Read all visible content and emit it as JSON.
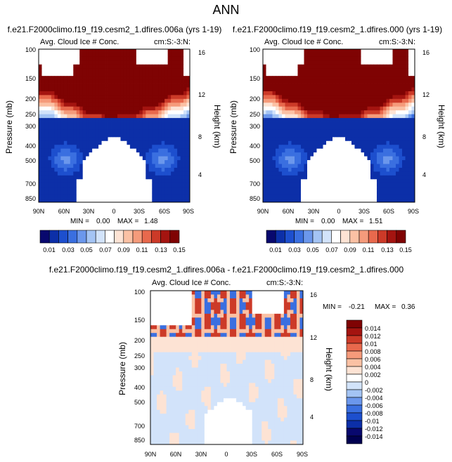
{
  "page": {
    "title": "ANN"
  },
  "chart_data": [
    {
      "type": "heatmap",
      "run_title": "f.e21.F2000climo.f19_f19.cesm2_1.dfires.006a (yrs 1-19)",
      "title": "Avg. Cloud Ice # Conc.",
      "corner_label": "cm:S:-3:N:",
      "ylabel": "Pressure (mb)",
      "ylabel_right": "Height (km)",
      "x_ticks": [
        "90N",
        "60N",
        "30N",
        "0",
        "30S",
        "60S",
        "90S"
      ],
      "y_ticks": [
        "100",
        "150",
        "200",
        "250",
        "300",
        "400",
        "500",
        "700",
        "850"
      ],
      "y_ticks_right": [
        "16",
        "12",
        "8",
        "4"
      ],
      "stats": {
        "min_label": "MIN =",
        "min": "0.00",
        "max_label": "MAX =",
        "max": "1.48"
      },
      "colorbar_labels": [
        "0.01",
        "0.03",
        "0.05",
        "0.07",
        "0.09",
        "0.11",
        "0.13",
        "0.15"
      ]
    },
    {
      "type": "heatmap",
      "run_title": "f.e21.F2000climo.f19_f19.cesm2_1.dfires.000 (yrs 1-19)",
      "title": "Avg. Cloud Ice # Conc.",
      "corner_label": "cm:S:-3:N:",
      "ylabel": "Pressure (mb)",
      "ylabel_right": "Height (km)",
      "x_ticks": [
        "90N",
        "60N",
        "30N",
        "0",
        "30S",
        "60S",
        "90S"
      ],
      "y_ticks": [
        "100",
        "150",
        "200",
        "250",
        "300",
        "400",
        "500",
        "700",
        "850"
      ],
      "y_ticks_right": [
        "16",
        "12",
        "8",
        "4"
      ],
      "stats": {
        "min_label": "MIN =",
        "min": "0.00",
        "max_label": "MAX =",
        "max": "1.51"
      },
      "colorbar_labels": [
        "0.01",
        "0.03",
        "0.05",
        "0.07",
        "0.09",
        "0.11",
        "0.13",
        "0.15"
      ]
    },
    {
      "type": "heatmap",
      "run_title": "f.e21.F2000climo.f19_f19.cesm2_1.dfires.006a - f.e21.F2000climo.f19_f19.cesm2_1.dfires.000",
      "title": "Avg. Cloud Ice # Conc.",
      "corner_label": "cm:S:-3:N:",
      "ylabel": "Pressure (mb)",
      "ylabel_right": "Height (km)",
      "x_ticks": [
        "90N",
        "60N",
        "30N",
        "0",
        "30S",
        "60S",
        "90S"
      ],
      "y_ticks": [
        "100",
        "150",
        "200",
        "250",
        "300",
        "400",
        "500",
        "700",
        "850"
      ],
      "y_ticks_right": [
        "16",
        "12",
        "8",
        "4"
      ],
      "stats": {
        "min_label": "MIN =",
        "min": "-0.21",
        "max_label": "MAX =",
        "max": "0.36"
      },
      "colorbar_labels": [
        "0.014",
        "0.012",
        "0.01",
        "0.008",
        "0.006",
        "0.004",
        "0.002",
        "0",
        "-0.002",
        "-0.004",
        "-0.006",
        "-0.008",
        "-0.01",
        "-0.012",
        "-0.014"
      ]
    }
  ],
  "colors": {
    "seq": [
      "#08086e",
      "#0c2fa8",
      "#1d4fce",
      "#3a6fe0",
      "#6b97ec",
      "#a4c4f4",
      "#d2e3fa",
      "#ffffff",
      "#fde3d4",
      "#fbc1a4",
      "#f59b7b",
      "#e8694d",
      "#cc3a28",
      "#a41410",
      "#7f0303"
    ],
    "diff": [
      "#7f0303",
      "#a41410",
      "#cc3a28",
      "#e8694d",
      "#f59b7b",
      "#fbc1a4",
      "#fde3d4",
      "#ffffff",
      "#d2e3fa",
      "#a4c4f4",
      "#6b97ec",
      "#3a6fe0",
      "#1d4fce",
      "#0c2fa8",
      "#08086e",
      "#000050"
    ]
  }
}
